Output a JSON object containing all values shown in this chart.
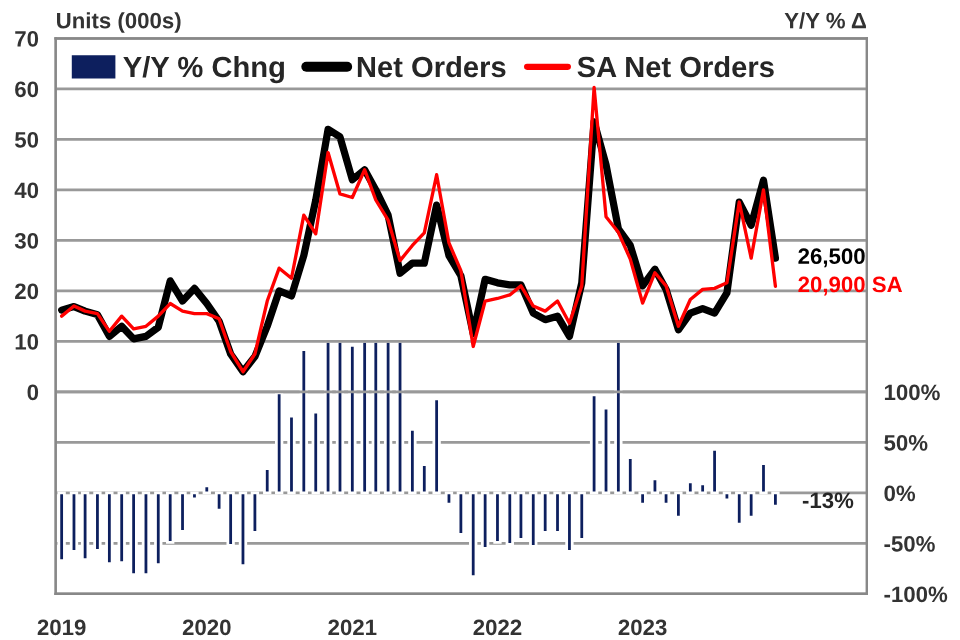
{
  "chart_data": {
    "type": "line",
    "ylabel": "Units (000s)",
    "y2label": "Y/Y % Δ",
    "x": [
      "2019-01",
      "2019-02",
      "2019-03",
      "2019-04",
      "2019-05",
      "2019-06",
      "2019-07",
      "2019-08",
      "2019-09",
      "2019-10",
      "2019-11",
      "2019-12",
      "2020-01",
      "2020-02",
      "2020-03",
      "2020-04",
      "2020-05",
      "2020-06",
      "2020-07",
      "2020-08",
      "2020-09",
      "2020-10",
      "2020-11",
      "2020-12",
      "2021-01",
      "2021-02",
      "2021-03",
      "2021-04",
      "2021-05",
      "2021-06",
      "2021-07",
      "2021-08",
      "2021-09",
      "2021-10",
      "2021-11",
      "2021-12",
      "2022-01",
      "2022-02",
      "2022-03",
      "2022-04",
      "2022-05",
      "2022-06",
      "2022-07",
      "2022-08",
      "2022-09",
      "2022-10",
      "2022-11",
      "2022-12",
      "2023-01",
      "2023-02",
      "2023-03",
      "2023-04",
      "2023-05",
      "2023-06",
      "2023-07",
      "2023-08",
      "2023-09",
      "2023-10",
      "2023-11",
      "2023-12"
    ],
    "series": [
      {
        "name": "Y/Y % Chng",
        "type": "bar",
        "axis": "y2",
        "color": "#0d1f5e",
        "values": [
          -67,
          -58,
          -66,
          -57,
          -70,
          -69,
          -81,
          -81,
          -71,
          -49,
          -38,
          -6,
          7,
          -17,
          -52,
          -72,
          -39,
          24,
          99,
          76,
          142,
          80,
          150,
          150,
          146,
          150,
          150,
          150,
          150,
          63,
          28,
          93,
          -11,
          -41,
          -83,
          -55,
          -49,
          -51,
          -46,
          -53,
          -39,
          -39,
          -58,
          -46,
          97,
          84,
          150,
          35,
          -11,
          14,
          -11,
          -24,
          11,
          9,
          43,
          -7,
          -31,
          -24,
          29,
          -13
        ]
      },
      {
        "name": "Net Orders",
        "axis": "y",
        "color": "#000000",
        "values": [
          16.2,
          16.9,
          16,
          15.3,
          11,
          13,
          10.5,
          11,
          12.8,
          22,
          18,
          20.5,
          17.5,
          14,
          7.5,
          4,
          7,
          13,
          20,
          19,
          27,
          38,
          52,
          50.5,
          42,
          44,
          40,
          35,
          23.5,
          25.5,
          25.5,
          37,
          27,
          23,
          11.5,
          22.3,
          21.6,
          21.2,
          21.2,
          15.6,
          14.3,
          15,
          11,
          21.6,
          53.5,
          45,
          32.3,
          29,
          21,
          24.3,
          20.3,
          12.3,
          15.6,
          16.5,
          15.6,
          19.6,
          37.6,
          33,
          41.9,
          26.5
        ]
      },
      {
        "name": "SA Net Orders",
        "axis": "y",
        "color": "#ff0000",
        "values": [
          15,
          17,
          16,
          15.5,
          12,
          15,
          12.5,
          13,
          15,
          17.5,
          16,
          15.5,
          15.5,
          14.5,
          8,
          4,
          7.5,
          18,
          24.5,
          22.5,
          35,
          31.3,
          47.4,
          39.2,
          38.5,
          44,
          38,
          34,
          26,
          29,
          31.5,
          43,
          29.5,
          24,
          9,
          18,
          18.5,
          19.2,
          21,
          17,
          16,
          18,
          13.6,
          21,
          60.3,
          34.7,
          31.6,
          26.3,
          17.6,
          23.6,
          21,
          13,
          18.3,
          20.3,
          20.5,
          21.6,
          37.6,
          26.5,
          40,
          20.9
        ]
      }
    ],
    "xlim": [
      "2018-12-17",
      "2024-07-18"
    ],
    "xticks": [
      {
        "value": "2019-01",
        "label": "2019"
      },
      {
        "value": "2020-01",
        "label": "2020"
      },
      {
        "value": "2021-01",
        "label": "2021"
      },
      {
        "value": "2022-01",
        "label": "2022"
      },
      {
        "value": "2023-01",
        "label": "2023"
      }
    ],
    "ylim": [
      -40,
      70
    ],
    "yticks": [
      0,
      10,
      20,
      30,
      40,
      50,
      60,
      70
    ],
    "y2lim": [
      -100,
      450
    ],
    "y2ticks": [
      {
        "value": -100,
        "label": "-100%"
      },
      {
        "value": -50,
        "label": "-50%"
      },
      {
        "value": 0,
        "label": "0%"
      },
      {
        "value": 50,
        "label": "50%"
      },
      {
        "value": 100,
        "label": "100%"
      }
    ],
    "annotations": [
      {
        "text": "26,500",
        "x": "2023-12",
        "y": 26.5
      },
      {
        "text": "20,900 SA",
        "x": "2023-12",
        "y": 20.9
      },
      "-13%"
    ],
    "grid": "y",
    "legend": "top left"
  }
}
